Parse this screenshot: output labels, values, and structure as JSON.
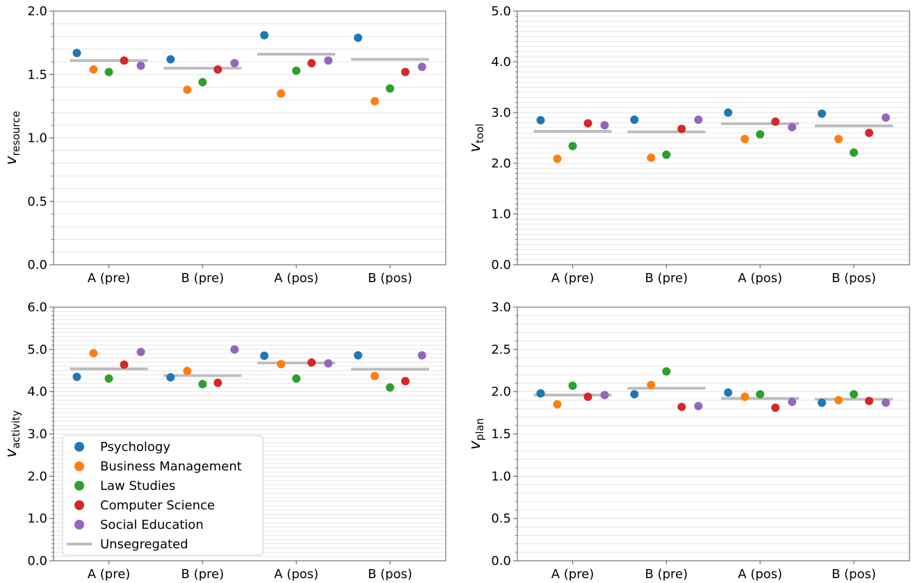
{
  "chart_data": [
    {
      "type": "scatter",
      "ylabel": "v_resource",
      "ylabel_main": "v",
      "ylabel_sub": "resource",
      "categories": [
        "A (pre)",
        "B (pre)",
        "A (pos)",
        "B (pos)"
      ],
      "ylim": [
        0,
        2.0
      ],
      "yticks": [
        "0.0",
        "0.5",
        "1.0",
        "1.5",
        "2.0"
      ],
      "series": [
        {
          "name": "Psychology",
          "values": [
            1.67,
            1.62,
            1.81,
            1.79
          ]
        },
        {
          "name": "Business Management",
          "values": [
            1.54,
            1.38,
            1.35,
            1.29
          ]
        },
        {
          "name": "Law Studies",
          "values": [
            1.52,
            1.44,
            1.53,
            1.39
          ]
        },
        {
          "name": "Computer Science",
          "values": [
            1.61,
            1.54,
            1.59,
            1.52
          ]
        },
        {
          "name": "Social Education",
          "values": [
            1.57,
            1.59,
            1.61,
            1.56
          ]
        }
      ],
      "unsegregated": [
        1.61,
        1.55,
        1.66,
        1.62
      ]
    },
    {
      "type": "scatter",
      "ylabel": "v_tool",
      "ylabel_main": "v",
      "ylabel_sub": "tool",
      "categories": [
        "A (pre)",
        "B (pre)",
        "A (pos)",
        "B (pos)"
      ],
      "ylim": [
        0,
        5.0
      ],
      "yticks": [
        "0.0",
        "1.0",
        "2.0",
        "3.0",
        "4.0",
        "5.0"
      ],
      "series": [
        {
          "name": "Psychology",
          "values": [
            2.85,
            2.86,
            3.0,
            2.98
          ]
        },
        {
          "name": "Business Management",
          "values": [
            2.09,
            2.11,
            2.48,
            2.48
          ]
        },
        {
          "name": "Law Studies",
          "values": [
            2.34,
            2.17,
            2.57,
            2.21
          ]
        },
        {
          "name": "Computer Science",
          "values": [
            2.79,
            2.68,
            2.82,
            2.6
          ]
        },
        {
          "name": "Social Education",
          "values": [
            2.75,
            2.86,
            2.71,
            2.9
          ]
        }
      ],
      "unsegregated": [
        2.63,
        2.62,
        2.78,
        2.74
      ]
    },
    {
      "type": "scatter",
      "ylabel": "v_activity",
      "ylabel_main": "v",
      "ylabel_sub": "activity",
      "categories": [
        "A (pre)",
        "B (pre)",
        "A (pos)",
        "B (pos)"
      ],
      "ylim": [
        0,
        6.0
      ],
      "yticks": [
        "0.0",
        "1.0",
        "2.0",
        "3.0",
        "4.0",
        "5.0",
        "6.0"
      ],
      "series": [
        {
          "name": "Psychology",
          "values": [
            4.35,
            4.34,
            4.85,
            4.86
          ]
        },
        {
          "name": "Business Management",
          "values": [
            4.91,
            4.49,
            4.65,
            4.37
          ]
        },
        {
          "name": "Law Studies",
          "values": [
            4.31,
            4.18,
            4.31,
            4.1
          ]
        },
        {
          "name": "Computer Science",
          "values": [
            4.64,
            4.21,
            4.69,
            4.25
          ]
        },
        {
          "name": "Social Education",
          "values": [
            4.94,
            5.0,
            4.67,
            4.86
          ]
        }
      ],
      "unsegregated": [
        4.54,
        4.38,
        4.68,
        4.53
      ]
    },
    {
      "type": "scatter",
      "ylabel": "v_plan",
      "ylabel_main": "v",
      "ylabel_sub": "plan",
      "categories": [
        "A (pre)",
        "B (pre)",
        "A (pos)",
        "B (pos)"
      ],
      "ylim": [
        0,
        3.0
      ],
      "yticks": [
        "0.0",
        "0.5",
        "1.0",
        "1.5",
        "2.0",
        "2.5",
        "3.0"
      ],
      "series": [
        {
          "name": "Psychology",
          "values": [
            1.98,
            1.97,
            1.99,
            1.87
          ]
        },
        {
          "name": "Business Management",
          "values": [
            1.85,
            2.08,
            1.94,
            1.9
          ]
        },
        {
          "name": "Law Studies",
          "values": [
            2.07,
            2.24,
            1.97,
            1.97
          ]
        },
        {
          "name": "Computer Science",
          "values": [
            1.94,
            1.82,
            1.81,
            1.89
          ]
        },
        {
          "name": "Social Education",
          "values": [
            1.96,
            1.83,
            1.88,
            1.87
          ]
        }
      ],
      "unsegregated": [
        1.96,
        2.04,
        1.92,
        1.91
      ]
    }
  ],
  "legend": {
    "entries": [
      "Psychology",
      "Business Management",
      "Law Studies",
      "Computer Science",
      "Social Education",
      "Unsegregated"
    ],
    "placement": "lower-left of bottom-left subplot"
  },
  "colors": {
    "Psychology": "#1f77b4",
    "Business Management": "#ff7f0e",
    "Law Studies": "#2ca02c",
    "Computer Science": "#d62728",
    "Social Education": "#9467bd",
    "Unsegregated": "#bdbdbd",
    "grid": "#e3e3e3",
    "axes": "#555555"
  }
}
